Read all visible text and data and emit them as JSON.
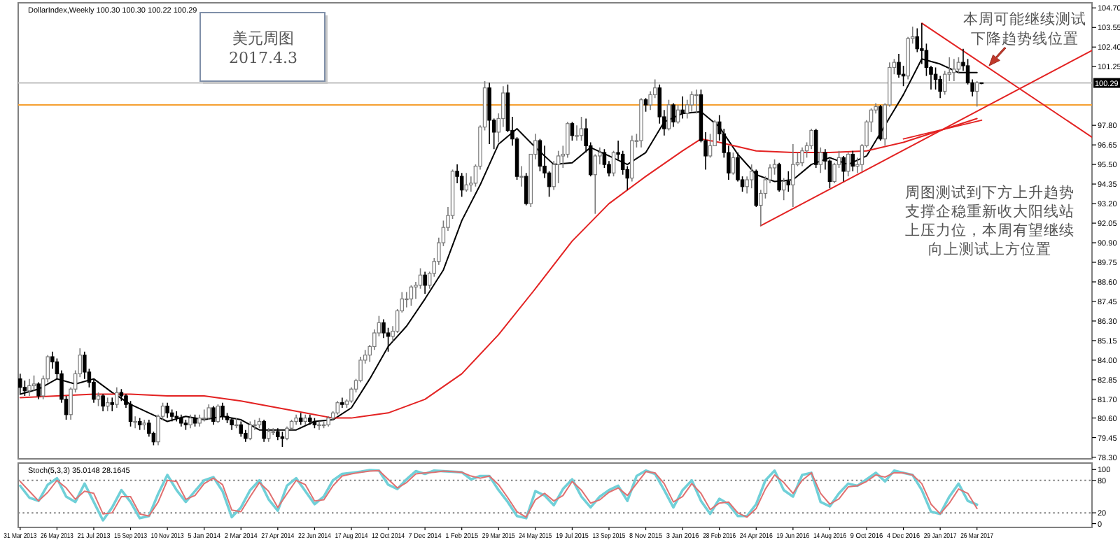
{
  "chart_data": [
    {
      "type": "candlestick",
      "title": "DollarIndex,Weekly  100.30 100.30 100.22 100.29",
      "x": [
        "2013-03-31",
        "2013-04-07",
        "2013-04-14",
        "2013-04-21",
        "2013-04-28",
        "2013-05-05",
        "2013-05-12",
        "2013-05-19",
        "2013-05-26",
        "2013-06-02",
        "2013-06-09",
        "2013-06-16",
        "2013-06-23",
        "2013-06-30",
        "2013-07-07",
        "2013-07-14",
        "2013-07-21",
        "2013-07-28",
        "2013-08-04",
        "2013-08-11",
        "2013-08-18",
        "2013-08-25",
        "2013-09-01",
        "2013-09-08",
        "2013-09-15",
        "2013-09-22",
        "2013-09-29",
        "2013-10-06",
        "2013-10-13",
        "2013-10-20",
        "2013-10-27",
        "2013-11-03",
        "2013-11-10",
        "2013-11-17",
        "2013-11-24",
        "2013-12-01",
        "2013-12-08",
        "2013-12-15",
        "2013-12-22",
        "2013-12-29",
        "2014-01-05",
        "2014-01-12",
        "2014-01-19",
        "2014-01-26",
        "2014-02-02",
        "2014-02-09",
        "2014-02-16",
        "2014-02-23",
        "2014-03-02",
        "2014-03-09",
        "2014-03-16",
        "2014-03-23",
        "2014-03-30",
        "2014-04-06",
        "2014-04-13",
        "2014-04-20",
        "2014-04-27",
        "2014-05-04",
        "2014-05-11",
        "2014-05-18",
        "2014-05-25",
        "2014-06-01",
        "2014-06-08",
        "2014-06-15",
        "2014-06-22",
        "2014-06-29",
        "2014-07-06",
        "2014-07-13",
        "2014-07-20",
        "2014-07-27",
        "2014-08-03",
        "2014-08-10",
        "2014-08-17",
        "2014-08-24",
        "2014-08-31",
        "2014-09-07",
        "2014-09-14",
        "2014-09-21",
        "2014-09-28",
        "2014-10-05",
        "2014-10-12",
        "2014-10-19",
        "2014-10-26",
        "2014-11-02",
        "2014-11-09",
        "2014-11-16",
        "2014-11-23",
        "2014-11-30",
        "2014-12-07",
        "2014-12-14",
        "2014-12-21",
        "2014-12-28",
        "2015-01-04",
        "2015-01-11",
        "2015-01-18",
        "2015-01-25",
        "2015-02-01",
        "2015-02-08",
        "2015-02-15",
        "2015-02-22",
        "2015-03-01",
        "2015-03-08",
        "2015-03-15",
        "2015-03-22",
        "2015-03-29",
        "2015-04-05",
        "2015-04-12",
        "2015-04-19",
        "2015-04-26",
        "2015-05-03",
        "2015-05-10",
        "2015-05-17",
        "2015-05-24",
        "2015-05-31",
        "2015-06-07",
        "2015-06-14",
        "2015-06-21",
        "2015-06-28",
        "2015-07-05",
        "2015-07-12",
        "2015-07-19",
        "2015-07-26",
        "2015-08-02",
        "2015-08-09",
        "2015-08-16",
        "2015-08-23",
        "2015-08-30",
        "2015-09-06",
        "2015-09-13",
        "2015-09-20",
        "2015-09-27",
        "2015-10-04",
        "2015-10-11",
        "2015-10-18",
        "2015-10-25",
        "2015-11-01",
        "2015-11-08",
        "2015-11-15",
        "2015-11-22",
        "2015-11-29",
        "2015-12-06",
        "2015-12-13",
        "2015-12-20",
        "2015-12-27",
        "2016-01-03",
        "2016-01-10",
        "2016-01-17",
        "2016-01-24",
        "2016-01-31",
        "2016-02-07",
        "2016-02-14",
        "2016-02-21",
        "2016-02-28",
        "2016-03-06",
        "2016-03-13",
        "2016-03-20",
        "2016-03-27",
        "2016-04-03",
        "2016-04-10",
        "2016-04-17",
        "2016-04-24",
        "2016-05-01",
        "2016-05-08",
        "2016-05-15",
        "2016-05-22",
        "2016-05-29",
        "2016-06-05",
        "2016-06-12",
        "2016-06-19",
        "2016-06-26",
        "2016-07-03",
        "2016-07-10",
        "2016-07-17",
        "2016-07-24",
        "2016-07-31",
        "2016-08-07",
        "2016-08-14",
        "2016-08-21",
        "2016-08-28",
        "2016-09-04",
        "2016-09-11",
        "2016-09-18",
        "2016-09-25",
        "2016-10-02",
        "2016-10-09",
        "2016-10-16",
        "2016-10-23",
        "2016-10-30",
        "2016-11-06",
        "2016-11-13",
        "2016-11-20",
        "2016-11-27",
        "2016-12-04",
        "2016-12-11",
        "2016-12-18",
        "2016-12-25",
        "2017-01-01",
        "2017-01-08",
        "2017-01-15",
        "2017-01-22",
        "2017-01-29",
        "2017-02-05",
        "2017-02-12",
        "2017-02-19",
        "2017-02-26",
        "2017-03-05",
        "2017-03-12",
        "2017-03-19",
        "2017-03-26",
        "2017-04-02"
      ],
      "ohlc": [
        [
          82.9,
          83.2,
          82.0,
          82.4
        ],
        [
          82.4,
          82.8,
          81.9,
          82.2
        ],
        [
          82.2,
          82.9,
          81.9,
          82.5
        ],
        [
          82.5,
          83.1,
          82.2,
          82.6
        ],
        [
          82.6,
          82.7,
          81.7,
          81.9
        ],
        [
          81.9,
          83.1,
          81.7,
          82.9
        ],
        [
          82.9,
          84.3,
          82.7,
          84.2
        ],
        [
          84.2,
          84.5,
          83.5,
          83.9
        ],
        [
          83.9,
          84.1,
          82.9,
          83.2
        ],
        [
          83.2,
          83.4,
          81.5,
          81.7
        ],
        [
          81.7,
          81.9,
          80.5,
          80.8
        ],
        [
          80.8,
          82.4,
          80.5,
          82.3
        ],
        [
          82.3,
          83.4,
          82.1,
          83.2
        ],
        [
          83.2,
          84.7,
          83.0,
          84.3
        ],
        [
          84.3,
          84.5,
          82.9,
          83.3
        ],
        [
          83.3,
          83.5,
          82.4,
          82.7
        ],
        [
          82.7,
          82.9,
          81.5,
          81.7
        ],
        [
          81.7,
          82.1,
          81.3,
          81.9
        ],
        [
          81.9,
          82.0,
          81.0,
          81.3
        ],
        [
          81.3,
          81.8,
          81.0,
          81.5
        ],
        [
          81.5,
          81.8,
          81.0,
          81.4
        ],
        [
          81.4,
          82.4,
          81.2,
          82.1
        ],
        [
          82.1,
          82.3,
          81.6,
          81.9
        ],
        [
          81.9,
          82.0,
          81.2,
          81.4
        ],
        [
          81.4,
          81.6,
          80.1,
          80.4
        ],
        [
          80.4,
          80.7,
          80.0,
          80.4
        ],
        [
          80.4,
          80.6,
          79.9,
          80.2
        ],
        [
          80.2,
          80.5,
          79.9,
          80.3
        ],
        [
          80.3,
          80.5,
          79.5,
          79.7
        ],
        [
          79.7,
          79.8,
          79.0,
          79.2
        ],
        [
          79.2,
          80.8,
          79.0,
          80.7
        ],
        [
          80.7,
          81.5,
          80.5,
          81.3
        ],
        [
          81.3,
          81.5,
          80.6,
          80.9
        ],
        [
          80.9,
          81.1,
          80.4,
          80.7
        ],
        [
          80.7,
          81.0,
          80.4,
          80.6
        ],
        [
          80.6,
          80.8,
          80.1,
          80.3
        ],
        [
          80.3,
          80.5,
          79.9,
          80.2
        ],
        [
          80.2,
          80.8,
          80.0,
          80.6
        ],
        [
          80.6,
          80.8,
          80.1,
          80.3
        ],
        [
          80.3,
          80.8,
          80.1,
          80.6
        ],
        [
          80.6,
          81.1,
          80.4,
          80.6
        ],
        [
          80.6,
          81.4,
          80.5,
          81.2
        ],
        [
          81.2,
          81.3,
          80.2,
          80.4
        ],
        [
          80.4,
          81.4,
          80.3,
          81.3
        ],
        [
          81.3,
          81.5,
          80.5,
          80.7
        ],
        [
          80.7,
          80.9,
          80.3,
          80.5
        ],
        [
          80.5,
          80.6,
          79.9,
          80.2
        ],
        [
          80.2,
          80.6,
          80.0,
          80.2
        ],
        [
          80.2,
          80.4,
          79.5,
          79.7
        ],
        [
          79.7,
          79.9,
          79.2,
          79.4
        ],
        [
          79.4,
          80.4,
          79.3,
          80.2
        ],
        [
          80.2,
          80.5,
          79.9,
          80.2
        ],
        [
          80.2,
          80.6,
          80.0,
          80.4
        ],
        [
          80.4,
          80.5,
          79.2,
          79.4
        ],
        [
          79.4,
          80.0,
          79.2,
          79.8
        ],
        [
          79.8,
          80.0,
          79.6,
          79.8
        ],
        [
          79.8,
          80.0,
          79.3,
          79.5
        ],
        [
          79.5,
          79.8,
          78.9,
          79.4
        ],
        [
          79.4,
          80.1,
          79.3,
          80.0
        ],
        [
          80.0,
          80.5,
          79.9,
          80.4
        ],
        [
          80.4,
          80.8,
          80.2,
          80.6
        ],
        [
          80.6,
          80.9,
          80.2,
          80.4
        ],
        [
          80.4,
          80.8,
          80.2,
          80.6
        ],
        [
          80.6,
          80.8,
          80.2,
          80.4
        ],
        [
          80.4,
          80.6,
          80.0,
          80.2
        ],
        [
          80.2,
          80.4,
          79.9,
          80.2
        ],
        [
          80.2,
          80.4,
          80.0,
          80.2
        ],
        [
          80.2,
          80.7,
          80.1,
          80.6
        ],
        [
          80.6,
          81.0,
          80.5,
          80.9
        ],
        [
          80.9,
          81.6,
          80.8,
          81.5
        ],
        [
          81.5,
          81.8,
          81.2,
          81.4
        ],
        [
          81.4,
          81.7,
          81.2,
          81.6
        ],
        [
          81.6,
          82.4,
          81.5,
          82.3
        ],
        [
          82.3,
          82.9,
          82.1,
          82.8
        ],
        [
          82.8,
          84.2,
          82.7,
          84.0
        ],
        [
          84.0,
          84.6,
          83.8,
          84.3
        ],
        [
          84.3,
          84.9,
          83.9,
          84.8
        ],
        [
          84.8,
          85.8,
          84.6,
          85.6
        ],
        [
          85.6,
          86.6,
          85.4,
          86.2
        ],
        [
          86.2,
          86.4,
          85.3,
          85.6
        ],
        [
          85.6,
          85.9,
          84.5,
          85.4
        ],
        [
          85.4,
          86.0,
          85.1,
          85.7
        ],
        [
          85.7,
          87.0,
          85.6,
          86.9
        ],
        [
          86.9,
          88.0,
          86.8,
          87.6
        ],
        [
          87.6,
          88.0,
          87.1,
          87.6
        ],
        [
          87.6,
          88.4,
          87.2,
          88.3
        ],
        [
          88.3,
          88.6,
          87.6,
          88.4
        ],
        [
          88.4,
          89.4,
          88.2,
          89.0
        ],
        [
          89.0,
          89.2,
          87.9,
          88.4
        ],
        [
          88.4,
          89.2,
          88.2,
          89.1
        ],
        [
          89.1,
          90.0,
          88.9,
          89.8
        ],
        [
          89.8,
          91.2,
          89.6,
          90.9
        ],
        [
          90.9,
          92.2,
          90.7,
          91.8
        ],
        [
          91.8,
          93.0,
          91.6,
          92.5
        ],
        [
          92.5,
          95.2,
          92.3,
          95.1
        ],
        [
          95.1,
          95.5,
          94.4,
          94.8
        ],
        [
          94.8,
          95.0,
          93.6,
          94.0
        ],
        [
          94.0,
          95.0,
          93.9,
          94.3
        ],
        [
          94.3,
          94.8,
          93.9,
          94.4
        ],
        [
          94.4,
          95.5,
          94.2,
          95.4
        ],
        [
          95.4,
          97.8,
          95.2,
          97.7
        ],
        [
          97.7,
          100.4,
          97.5,
          100.0
        ],
        [
          100.0,
          100.3,
          96.7,
          98.1
        ],
        [
          98.1,
          98.2,
          96.4,
          97.4
        ],
        [
          97.4,
          98.5,
          96.8,
          98.2
        ],
        [
          98.2,
          100.1,
          97.7,
          99.7
        ],
        [
          99.7,
          100.2,
          97.4,
          97.5
        ],
        [
          97.5,
          98.3,
          96.6,
          97.0
        ],
        [
          97.0,
          97.1,
          94.6,
          94.8
        ],
        [
          94.8,
          95.4,
          94.2,
          94.8
        ],
        [
          94.8,
          95.0,
          93.1,
          93.2
        ],
        [
          93.2,
          96.1,
          93.0,
          96.1
        ],
        [
          96.1,
          97.3,
          95.8,
          96.9
        ],
        [
          96.9,
          97.0,
          95.1,
          95.4
        ],
        [
          95.4,
          96.6,
          94.7,
          95.0
        ],
        [
          95.0,
          95.1,
          93.6,
          94.2
        ],
        [
          94.2,
          95.7,
          94.0,
          95.5
        ],
        [
          95.5,
          96.3,
          94.4,
          96.0
        ],
        [
          96.0,
          96.6,
          95.3,
          96.1
        ],
        [
          96.1,
          98.0,
          95.9,
          97.9
        ],
        [
          97.9,
          98.0,
          96.9,
          97.2
        ],
        [
          97.2,
          97.8,
          96.9,
          97.2
        ],
        [
          97.2,
          98.3,
          96.9,
          97.6
        ],
        [
          97.6,
          98.2,
          96.2,
          96.6
        ],
        [
          96.6,
          96.8,
          94.8,
          94.9
        ],
        [
          94.9,
          96.1,
          92.6,
          96.0
        ],
        [
          96.0,
          96.5,
          95.5,
          96.2
        ],
        [
          96.2,
          96.4,
          95.3,
          95.5
        ],
        [
          95.5,
          95.7,
          94.8,
          95.0
        ],
        [
          95.0,
          96.3,
          94.8,
          96.2
        ],
        [
          96.2,
          96.9,
          95.8,
          96.1
        ],
        [
          96.1,
          96.3,
          94.9,
          95.2
        ],
        [
          95.2,
          95.4,
          94.0,
          94.7
        ],
        [
          94.7,
          97.2,
          94.5,
          96.9
        ],
        [
          96.9,
          97.3,
          96.5,
          96.9
        ],
        [
          96.9,
          99.4,
          96.5,
          99.3
        ],
        [
          99.3,
          99.4,
          98.6,
          99.0
        ],
        [
          99.0,
          99.8,
          98.7,
          99.6
        ],
        [
          99.6,
          100.5,
          99.4,
          100.0
        ],
        [
          100.0,
          100.2,
          97.9,
          98.3
        ],
        [
          98.3,
          98.7,
          97.2,
          97.6
        ],
        [
          97.6,
          99.3,
          97.5,
          99.0
        ],
        [
          99.0,
          99.1,
          97.7,
          98.0
        ],
        [
          98.0,
          99.0,
          97.9,
          98.7
        ],
        [
          98.7,
          99.5,
          98.2,
          98.5
        ],
        [
          98.5,
          99.3,
          98.2,
          99.0
        ],
        [
          99.0,
          99.8,
          98.6,
          99.6
        ],
        [
          99.6,
          99.9,
          98.5,
          99.6
        ],
        [
          99.6,
          99.9,
          96.8,
          96.9
        ],
        [
          96.9,
          97.4,
          95.2,
          96.0
        ],
        [
          96.0,
          97.3,
          95.9,
          96.6
        ],
        [
          96.6,
          98.1,
          96.6,
          98.0
        ],
        [
          98.0,
          98.4,
          96.9,
          97.3
        ],
        [
          97.3,
          97.6,
          95.9,
          96.2
        ],
        [
          96.2,
          96.6,
          94.6,
          95.0
        ],
        [
          95.0,
          96.2,
          94.9,
          95.9
        ],
        [
          95.9,
          96.2,
          94.5,
          94.6
        ],
        [
          94.6,
          94.8,
          93.9,
          94.2
        ],
        [
          94.2,
          94.8,
          93.8,
          94.6
        ],
        [
          94.6,
          95.5,
          94.1,
          95.1
        ],
        [
          95.1,
          95.2,
          93.0,
          93.1
        ],
        [
          93.1,
          94.0,
          91.9,
          93.8
        ],
        [
          93.8,
          94.8,
          93.5,
          94.6
        ],
        [
          94.6,
          95.5,
          94.4,
          95.3
        ],
        [
          95.3,
          95.8,
          94.9,
          95.5
        ],
        [
          95.5,
          95.6,
          93.9,
          94.0
        ],
        [
          94.0,
          94.7,
          93.4,
          94.5
        ],
        [
          94.5,
          95.1,
          93.9,
          94.3
        ],
        [
          94.3,
          96.7,
          93.0,
          95.5
        ],
        [
          95.5,
          96.2,
          95.4,
          95.6
        ],
        [
          95.6,
          96.5,
          95.4,
          96.3
        ],
        [
          96.3,
          96.8,
          95.9,
          96.6
        ],
        [
          96.6,
          97.6,
          96.4,
          97.5
        ],
        [
          97.5,
          97.6,
          95.3,
          95.5
        ],
        [
          95.5,
          96.5,
          95.0,
          96.2
        ],
        [
          96.2,
          96.4,
          95.2,
          95.7
        ],
        [
          95.7,
          95.8,
          94.1,
          94.5
        ],
        [
          94.5,
          95.6,
          94.4,
          95.5
        ],
        [
          95.5,
          96.3,
          95.3,
          95.9
        ],
        [
          95.9,
          96.0,
          94.5,
          95.1
        ],
        [
          95.1,
          96.2,
          94.8,
          96.1
        ],
        [
          96.1,
          96.3,
          95.1,
          95.4
        ],
        [
          95.4,
          95.9,
          95.0,
          95.5
        ],
        [
          95.5,
          96.7,
          95.1,
          96.6
        ],
        [
          96.6,
          98.1,
          96.5,
          98.0
        ],
        [
          98.0,
          98.8,
          97.4,
          98.7
        ],
        [
          98.7,
          99.1,
          98.5,
          98.9
        ],
        [
          98.9,
          99.0,
          96.9,
          97.0
        ],
        [
          97.0,
          99.1,
          96.6,
          99.0
        ],
        [
          99.0,
          101.5,
          98.9,
          101.2
        ],
        [
          101.2,
          101.7,
          100.8,
          101.5
        ],
        [
          101.5,
          102.0,
          100.6,
          100.8
        ],
        [
          100.8,
          101.3,
          100.1,
          100.7
        ],
        [
          100.7,
          103.0,
          100.5,
          102.9
        ],
        [
          102.9,
          103.6,
          102.6,
          103.0
        ],
        [
          103.0,
          103.5,
          102.1,
          102.3
        ],
        [
          102.3,
          103.8,
          101.4,
          102.2
        ],
        [
          102.2,
          102.6,
          100.7,
          101.2
        ],
        [
          101.2,
          101.3,
          99.9,
          100.8
        ],
        [
          100.8,
          101.2,
          99.9,
          100.5
        ],
        [
          100.5,
          100.7,
          99.4,
          99.8
        ],
        [
          99.8,
          101.0,
          99.6,
          100.8
        ],
        [
          100.8,
          101.8,
          100.4,
          100.9
        ],
        [
          100.9,
          101.7,
          100.4,
          101.1
        ],
        [
          101.1,
          101.8,
          100.9,
          101.5
        ],
        [
          101.5,
          102.3,
          101.0,
          101.3
        ],
        [
          101.3,
          101.7,
          100.2,
          100.3
        ],
        [
          100.3,
          100.5,
          99.5,
          99.8
        ],
        [
          99.8,
          100.4,
          98.9,
          100.3
        ],
        [
          100.3,
          100.3,
          100.22,
          100.29
        ]
      ],
      "series": [
        {
          "type": "line",
          "color": "#000000",
          "x": [
            "2013-03-31",
            "2013-04-28",
            "2013-05-26",
            "2013-06-23",
            "2013-07-21",
            "2013-08-18",
            "2013-09-15",
            "2013-10-13",
            "2013-11-10",
            "2013-12-08",
            "2014-01-05",
            "2014-02-02",
            "2014-03-02",
            "2014-03-30",
            "2014-04-27",
            "2014-05-25",
            "2014-06-22",
            "2014-07-20",
            "2014-08-17",
            "2014-09-14",
            "2014-10-12",
            "2014-11-09",
            "2014-12-07",
            "2015-01-04",
            "2015-02-01",
            "2015-03-01",
            "2015-03-29",
            "2015-04-26",
            "2015-05-24",
            "2015-06-21",
            "2015-07-19",
            "2015-08-16",
            "2015-09-13",
            "2015-10-11",
            "2015-11-08",
            "2015-12-06",
            "2016-01-03",
            "2016-01-31",
            "2016-02-28",
            "2016-03-27",
            "2016-04-24",
            "2016-05-22",
            "2016-06-19",
            "2016-07-17",
            "2016-08-14",
            "2016-09-11",
            "2016-10-09",
            "2016-11-06",
            "2016-12-04",
            "2017-01-01",
            "2017-01-29",
            "2017-02-26",
            "2017-03-26"
          ],
          "values": [
            82.0,
            82.3,
            82.9,
            82.6,
            82.9,
            82.1,
            81.4,
            80.9,
            80.4,
            80.7,
            80.5,
            80.7,
            80.5,
            79.9,
            79.9,
            79.9,
            80.4,
            80.5,
            81.2,
            82.9,
            84.8,
            86.0,
            87.6,
            89.3,
            92.2,
            94.3,
            96.7,
            97.6,
            96.5,
            95.5,
            95.6,
            96.5,
            96.0,
            95.5,
            96.2,
            98.0,
            98.5,
            98.6,
            97.7,
            96.1,
            94.9,
            94.5,
            94.6,
            95.5,
            95.9,
            95.5,
            96.0,
            97.8,
            99.6,
            101.7,
            101.4,
            100.9,
            100.9
          ]
        },
        {
          "type": "line",
          "color": "#e32222",
          "x": [
            "2013-03-31",
            "2013-05-26",
            "2013-07-21",
            "2013-09-15",
            "2013-11-10",
            "2014-01-05",
            "2014-03-02",
            "2014-04-27",
            "2014-06-22",
            "2014-07-20",
            "2014-08-17",
            "2014-10-12",
            "2014-12-07",
            "2015-02-01",
            "2015-03-29",
            "2015-05-24",
            "2015-07-19",
            "2015-09-13",
            "2015-11-08",
            "2016-01-03",
            "2016-01-31",
            "2016-02-28",
            "2016-04-24",
            "2016-06-19",
            "2016-08-14",
            "2016-10-09",
            "2016-12-04",
            "2017-01-29",
            "2017-03-26"
          ],
          "values": [
            81.8,
            81.9,
            82.0,
            82.0,
            81.9,
            81.9,
            81.6,
            81.2,
            80.8,
            80.6,
            80.6,
            80.9,
            81.7,
            83.2,
            85.5,
            88.2,
            91.0,
            93.2,
            94.8,
            96.3,
            97.0,
            96.8,
            96.3,
            96.2,
            96.2,
            96.3,
            96.8,
            97.5,
            98.2
          ]
        },
        {
          "type": "line",
          "color": "#e32222",
          "x": [
            "2017-01-01",
            "2017-09-17"
          ],
          "values": [
            103.8,
            97.1
          ]
        },
        {
          "type": "line",
          "color": "#e32222",
          "x": [
            "2016-05-01",
            "2017-09-17"
          ],
          "values": [
            91.9,
            102.2
          ]
        },
        {
          "type": "line",
          "color": "#e32222",
          "x": [
            "2016-12-04",
            "2017-04-02"
          ],
          "values": [
            97.0,
            98.1
          ]
        }
      ],
      "xlim": [
        "2013-03-28",
        "2017-09-17"
      ],
      "ylim": [
        78.2,
        105.0
      ],
      "yticks": [
        {
          "value": 104.7,
          "label": "104.70"
        },
        {
          "value": 103.55,
          "label": "103.55"
        },
        {
          "value": 102.4,
          "label": "102.40"
        },
        {
          "value": 101.25,
          "label": "101.25"
        },
        {
          "value": 97.8,
          "label": "97.80"
        },
        {
          "value": 96.65,
          "label": "96.65"
        },
        {
          "value": 95.5,
          "label": "95.50"
        },
        {
          "value": 94.35,
          "label": "94.35"
        },
        {
          "value": 93.2,
          "label": "93.20"
        },
        {
          "value": 92.05,
          "label": "92.05"
        },
        {
          "value": 90.9,
          "label": "90.90"
        },
        {
          "value": 89.75,
          "label": "89.75"
        },
        {
          "value": 88.6,
          "label": "88.60"
        },
        {
          "value": 87.45,
          "label": "87.45"
        },
        {
          "value": 86.3,
          "label": "86.30"
        },
        {
          "value": 85.15,
          "label": "85.15"
        },
        {
          "value": 84.0,
          "label": "84.00"
        },
        {
          "value": 82.85,
          "label": "82.85"
        },
        {
          "value": 81.7,
          "label": "81.70"
        },
        {
          "value": 80.6,
          "label": "80.60"
        },
        {
          "value": 79.45,
          "label": "79.45"
        },
        {
          "value": 78.3,
          "label": "78.30"
        }
      ],
      "tick_labels": "y",
      "ref_lines": [
        {
          "axis": "y",
          "value": 100.29,
          "label": "100.29",
          "color": "#c0c0c0"
        },
        {
          "axis": "y",
          "value": 99.0,
          "color": "#f5a030"
        }
      ],
      "annotations": [
        "美元周图",
        "2017.4.3",
        "本周可能继续测试下降趋势线位置",
        "周图测试到下方上升趋势支撑企稳重新收大阳线站上压力位，本周有望继续向上测试上方位置"
      ]
    },
    {
      "type": "line",
      "title": "Stoch(5,3,3) 35.0148 28.1645",
      "x": [
        "2013-03-31",
        "2013-04-14",
        "2013-04-28",
        "2013-05-12",
        "2013-05-26",
        "2013-06-09",
        "2013-06-23",
        "2013-07-07",
        "2013-07-21",
        "2013-08-04",
        "2013-08-18",
        "2013-09-01",
        "2013-09-15",
        "2013-09-29",
        "2013-10-13",
        "2013-10-27",
        "2013-11-10",
        "2013-11-24",
        "2013-12-08",
        "2013-12-22",
        "2014-01-05",
        "2014-01-19",
        "2014-02-02",
        "2014-02-16",
        "2014-03-02",
        "2014-03-16",
        "2014-03-30",
        "2014-04-13",
        "2014-04-27",
        "2014-05-11",
        "2014-05-25",
        "2014-06-08",
        "2014-06-22",
        "2014-07-06",
        "2014-07-20",
        "2014-08-03",
        "2014-08-17",
        "2014-08-31",
        "2014-09-14",
        "2014-09-28",
        "2014-10-12",
        "2014-10-26",
        "2014-11-09",
        "2014-11-23",
        "2014-12-07",
        "2014-12-21",
        "2015-01-04",
        "2015-01-18",
        "2015-02-01",
        "2015-02-15",
        "2015-03-01",
        "2015-03-15",
        "2015-03-29",
        "2015-04-12",
        "2015-04-26",
        "2015-05-10",
        "2015-05-24",
        "2015-06-07",
        "2015-06-21",
        "2015-07-05",
        "2015-07-19",
        "2015-08-02",
        "2015-08-16",
        "2015-08-30",
        "2015-09-13",
        "2015-09-27",
        "2015-10-11",
        "2015-10-25",
        "2015-11-08",
        "2015-11-22",
        "2015-12-06",
        "2015-12-20",
        "2016-01-03",
        "2016-01-17",
        "2016-01-31",
        "2016-02-14",
        "2016-02-28",
        "2016-03-13",
        "2016-03-27",
        "2016-04-10",
        "2016-04-24",
        "2016-05-08",
        "2016-05-22",
        "2016-06-05",
        "2016-06-19",
        "2016-07-03",
        "2016-07-17",
        "2016-07-31",
        "2016-08-14",
        "2016-08-28",
        "2016-09-11",
        "2016-09-25",
        "2016-10-09",
        "2016-10-23",
        "2016-11-06",
        "2016-11-20",
        "2016-12-04",
        "2016-12-18",
        "2017-01-01",
        "2017-01-15",
        "2017-01-29",
        "2017-02-12",
        "2017-02-26",
        "2017-03-12",
        "2017-03-26"
      ],
      "series": [
        {
          "color": "#70d0d8",
          "values": [
            70,
            48,
            42,
            72,
            84,
            50,
            40,
            74,
            40,
            6,
            30,
            62,
            40,
            10,
            14,
            55,
            90,
            62,
            40,
            60,
            80,
            86,
            60,
            12,
            30,
            62,
            80,
            45,
            24,
            70,
            84,
            60,
            36,
            50,
            80,
            92,
            94,
            96,
            99,
            98,
            72,
            64,
            82,
            97,
            92,
            98,
            97,
            96,
            95,
            82,
            88,
            88,
            62,
            40,
            14,
            10,
            60,
            52,
            34,
            64,
            82,
            50,
            30,
            50,
            62,
            70,
            42,
            88,
            98,
            92,
            62,
            30,
            62,
            80,
            42,
            18,
            46,
            36,
            14,
            14,
            36,
            80,
            98,
            62,
            50,
            90,
            94,
            40,
            32,
            56,
            74,
            70,
            82,
            94,
            78,
            98,
            94,
            90,
            62,
            22,
            18,
            50,
            74,
            42,
            35
          ]
        },
        {
          "color": "#e07070",
          "values": [
            78,
            60,
            42,
            58,
            80,
            66,
            45,
            60,
            56,
            18,
            20,
            50,
            50,
            18,
            14,
            40,
            80,
            78,
            45,
            52,
            74,
            84,
            72,
            25,
            22,
            50,
            76,
            60,
            30,
            55,
            80,
            72,
            42,
            44,
            70,
            88,
            92,
            95,
            97,
            98,
            82,
            66,
            76,
            92,
            94,
            95,
            97,
            96,
            95,
            88,
            84,
            88,
            72,
            48,
            22,
            12,
            44,
            56,
            42,
            52,
            78,
            62,
            38,
            44,
            58,
            66,
            52,
            74,
            96,
            94,
            74,
            40,
            50,
            74,
            56,
            26,
            38,
            40,
            20,
            12,
            28,
            64,
            90,
            76,
            56,
            80,
            94,
            56,
            36,
            46,
            68,
            70,
            78,
            90,
            86,
            94,
            94,
            90,
            74,
            36,
            18,
            38,
            64,
            56,
            28
          ]
        }
      ],
      "xlim": [
        "2013-03-28",
        "2017-09-17"
      ],
      "ylim": [
        -7,
        112
      ],
      "xticks": [
        {
          "value": "2013-03-31",
          "label": "31 Mar 2013"
        },
        {
          "value": "2013-05-26",
          "label": "26 May 2013"
        },
        {
          "value": "2013-07-21",
          "label": "21 Jul 2013"
        },
        {
          "value": "2013-09-15",
          "label": "15 Sep 2013"
        },
        {
          "value": "2013-11-10",
          "label": "10 Nov 2013"
        },
        {
          "value": "2014-01-05",
          "label": "5 Jan 2014"
        },
        {
          "value": "2014-03-02",
          "label": "2 Mar 2014"
        },
        {
          "value": "2014-04-27",
          "label": "27 Apr 2014"
        },
        {
          "value": "2014-06-22",
          "label": "22 Jun 2014"
        },
        {
          "value": "2014-08-17",
          "label": "17 Aug 2014"
        },
        {
          "value": "2014-10-12",
          "label": "12 Oct 2014"
        },
        {
          "value": "2014-12-07",
          "label": "7 Dec 2014"
        },
        {
          "value": "2015-02-01",
          "label": "1 Feb 2015"
        },
        {
          "value": "2015-03-29",
          "label": "29 Mar 2015"
        },
        {
          "value": "2015-05-24",
          "label": "24 May 2015"
        },
        {
          "value": "2015-07-19",
          "label": "19 Jul 2015"
        },
        {
          "value": "2015-09-13",
          "label": "13 Sep 2015"
        },
        {
          "value": "2015-11-08",
          "label": "8 Nov 2015"
        },
        {
          "value": "2016-01-03",
          "label": "3 Jan 2016"
        },
        {
          "value": "2016-02-28",
          "label": "28 Feb 2016"
        },
        {
          "value": "2016-04-24",
          "label": "24 Apr 2016"
        },
        {
          "value": "2016-06-19",
          "label": "19 Jun 2016"
        },
        {
          "value": "2016-08-14",
          "label": "14 Aug 2016"
        },
        {
          "value": "2016-10-09",
          "label": "9 Oct 2016"
        },
        {
          "value": "2016-12-04",
          "label": "4 Dec 2016"
        },
        {
          "value": "2017-01-29",
          "label": "29 Jan 2017"
        },
        {
          "value": "2017-03-26",
          "label": "26 Mar 2017"
        }
      ],
      "yticks": [
        100,
        80,
        20,
        0
      ],
      "ref_lines": [
        {
          "axis": "y",
          "value": 80,
          "color": "#808080",
          "line_style": "dotted"
        },
        {
          "axis": "y",
          "value": 20,
          "color": "#808080",
          "line_style": "dotted"
        }
      ]
    }
  ]
}
